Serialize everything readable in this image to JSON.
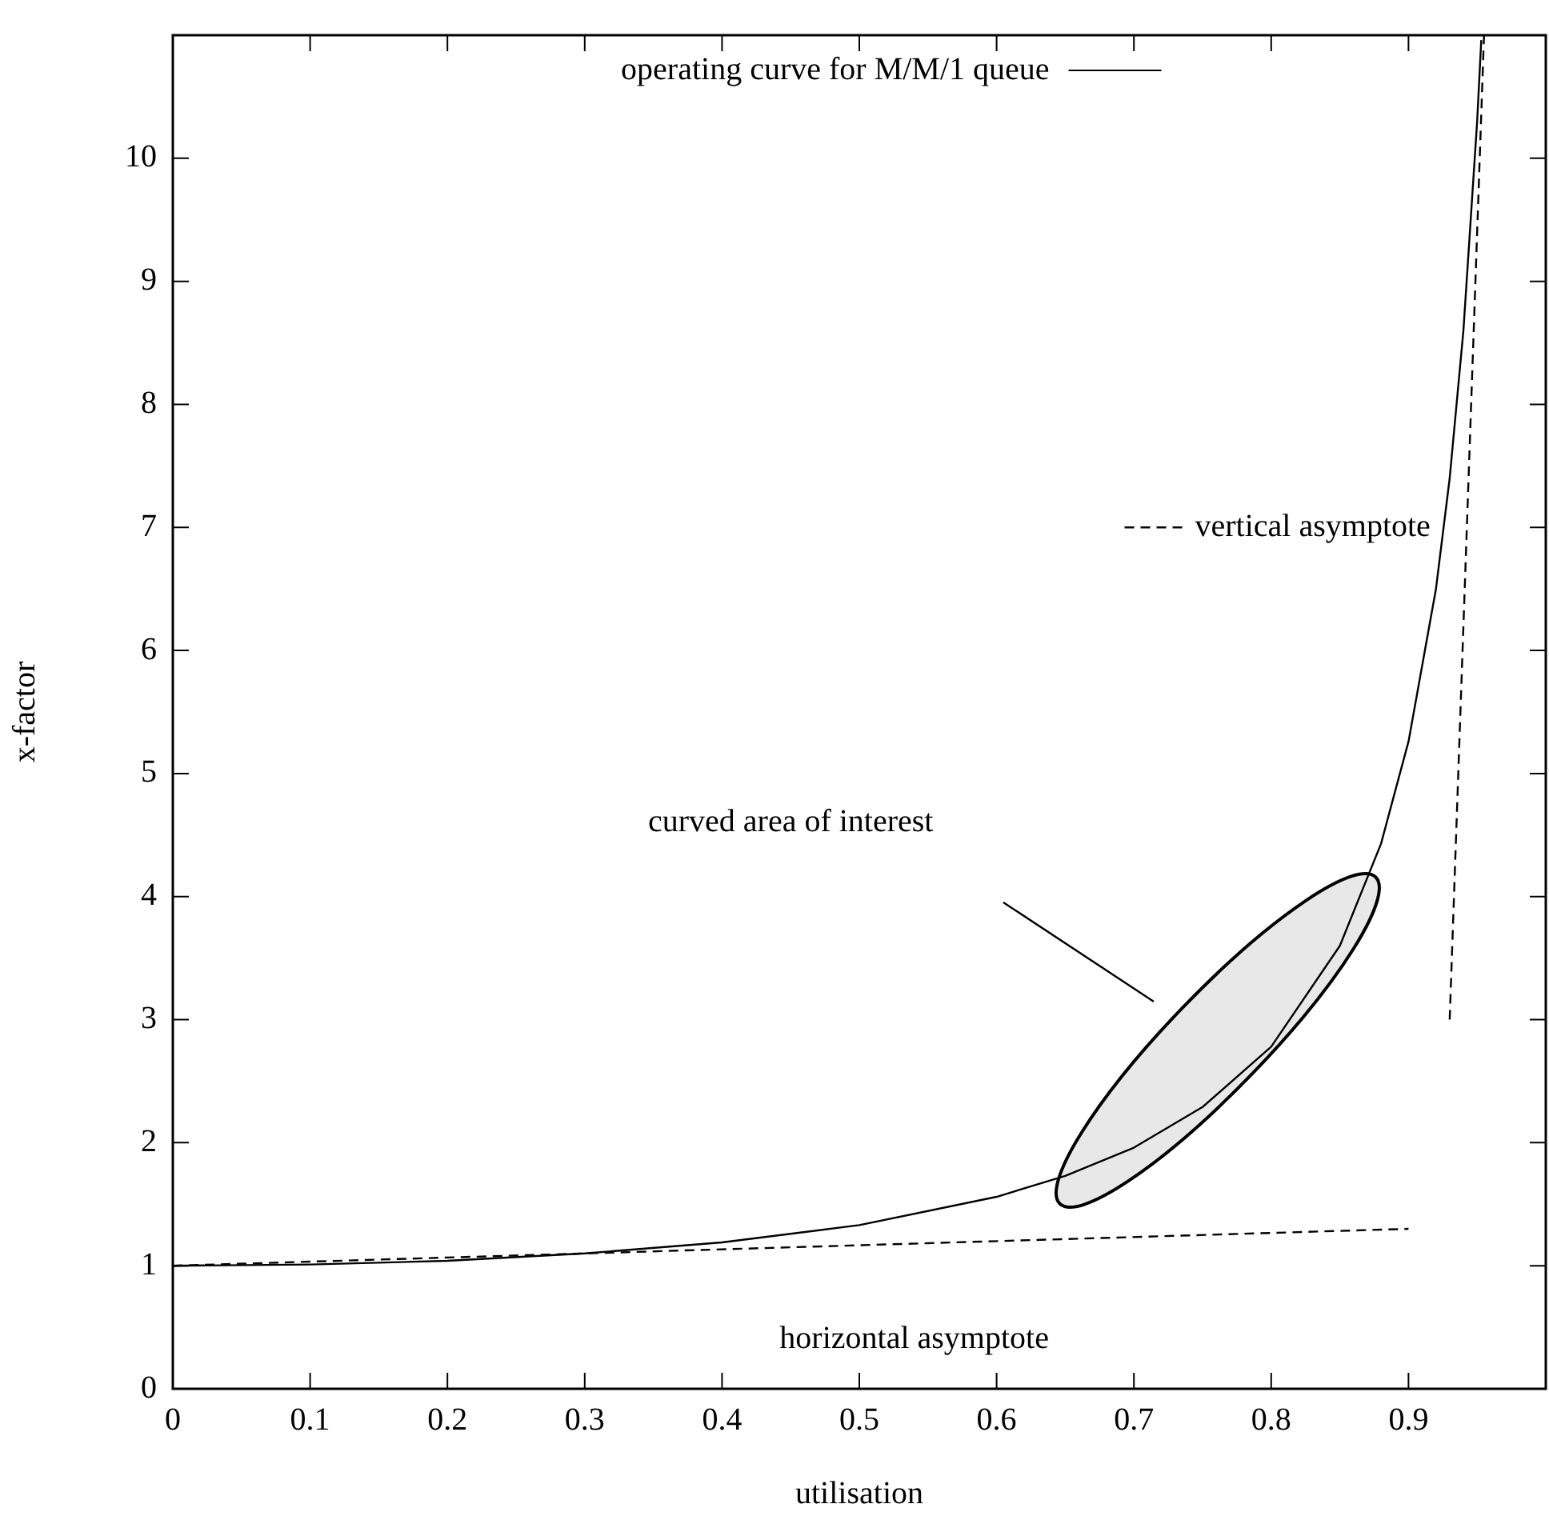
{
  "chart_data": {
    "type": "line",
    "xlabel": "utilisation",
    "ylabel": "x-factor",
    "xlim": [
      0,
      1
    ],
    "ylim": [
      0,
      11
    ],
    "xticks": [
      0,
      0.1,
      0.2,
      0.3,
      0.4,
      0.5,
      0.6,
      0.7,
      0.8,
      0.9
    ],
    "yticks": [
      0,
      1,
      2,
      3,
      4,
      5,
      6,
      7,
      8,
      9,
      10
    ],
    "grid": false,
    "legend": "top",
    "marker": "none",
    "series": [
      {
        "name": "operating curve for M/M/1 queue",
        "color": "#000000",
        "line_style": "solid",
        "x": [
          0,
          0.1,
          0.2,
          0.3,
          0.4,
          0.5,
          0.6,
          0.65,
          0.7,
          0.75,
          0.8,
          0.85,
          0.88,
          0.9,
          0.92,
          0.93,
          0.94,
          0.95,
          0.953
        ],
        "values": [
          1,
          1.01,
          1.04,
          1.1,
          1.19,
          1.33,
          1.56,
          1.73,
          1.96,
          2.29,
          2.78,
          3.6,
          4.43,
          5.26,
          6.5,
          7.4,
          8.6,
          10.3,
          10.96
        ]
      },
      {
        "name": "horizontal asymptote",
        "type": "line",
        "color": "#000000",
        "line_style": "dashed",
        "x": [
          0,
          0.9
        ],
        "values": [
          1,
          1.3
        ]
      },
      {
        "name": "vertical asymptote",
        "type": "line",
        "color": "#000000",
        "line_style": "dashed",
        "x": [
          0.93,
          0.955
        ],
        "values": [
          3,
          11
        ]
      }
    ],
    "annotations": [
      "curved area of interest"
    ]
  }
}
